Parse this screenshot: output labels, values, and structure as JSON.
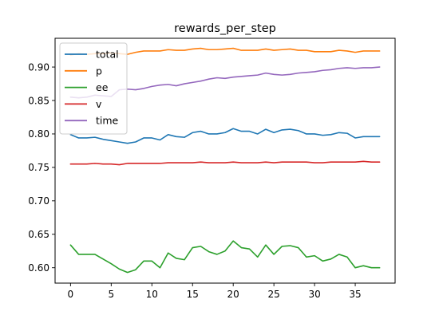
{
  "chart_data": {
    "type": "line",
    "title": "rewards_per_step",
    "xlabel": "",
    "ylabel": "",
    "xlim": [
      -1.9,
      39.9
    ],
    "ylim": [
      0.577,
      0.943
    ],
    "xticks": [
      0,
      5,
      10,
      15,
      20,
      25,
      30,
      35
    ],
    "yticks": [
      0.6,
      0.65,
      0.7,
      0.75,
      0.8,
      0.85,
      0.9
    ],
    "ytick_labels": [
      "0.60",
      "0.65",
      "0.70",
      "0.75",
      "0.80",
      "0.85",
      "0.90"
    ],
    "grid": false,
    "legend_position": "upper-left",
    "x": [
      0,
      1,
      2,
      3,
      4,
      5,
      6,
      7,
      8,
      9,
      10,
      11,
      12,
      13,
      14,
      15,
      16,
      17,
      18,
      19,
      20,
      21,
      22,
      23,
      24,
      25,
      26,
      27,
      28,
      29,
      30,
      31,
      32,
      33,
      34,
      35,
      36,
      37,
      38
    ],
    "series": [
      {
        "name": "total",
        "color": "#1f77b4",
        "values": [
          0.799,
          0.794,
          0.794,
          0.795,
          0.792,
          0.79,
          0.788,
          0.786,
          0.788,
          0.794,
          0.794,
          0.791,
          0.799,
          0.796,
          0.795,
          0.802,
          0.804,
          0.8,
          0.8,
          0.802,
          0.808,
          0.804,
          0.804,
          0.8,
          0.807,
          0.802,
          0.806,
          0.807,
          0.805,
          0.8,
          0.8,
          0.798,
          0.799,
          0.802,
          0.801,
          0.794,
          0.796,
          0.796,
          0.796
        ]
      },
      {
        "name": "p",
        "color": "#ff7f0e",
        "values": [
          0.918,
          0.92,
          0.919,
          0.92,
          0.92,
          0.921,
          0.92,
          0.919,
          0.922,
          0.924,
          0.924,
          0.924,
          0.926,
          0.925,
          0.925,
          0.927,
          0.928,
          0.926,
          0.926,
          0.927,
          0.928,
          0.925,
          0.925,
          0.925,
          0.927,
          0.925,
          0.926,
          0.927,
          0.925,
          0.925,
          0.923,
          0.923,
          0.923,
          0.925,
          0.924,
          0.922,
          0.924,
          0.924,
          0.924
        ]
      },
      {
        "name": "ee",
        "color": "#2ca02c",
        "values": [
          0.634,
          0.62,
          0.62,
          0.62,
          0.613,
          0.606,
          0.598,
          0.593,
          0.597,
          0.61,
          0.61,
          0.6,
          0.622,
          0.614,
          0.612,
          0.63,
          0.632,
          0.624,
          0.62,
          0.625,
          0.64,
          0.63,
          0.628,
          0.616,
          0.634,
          0.62,
          0.632,
          0.633,
          0.63,
          0.616,
          0.618,
          0.61,
          0.613,
          0.62,
          0.616,
          0.6,
          0.603,
          0.6,
          0.6
        ]
      },
      {
        "name": "v",
        "color": "#d62728",
        "values": [
          0.755,
          0.755,
          0.755,
          0.756,
          0.755,
          0.755,
          0.754,
          0.756,
          0.756,
          0.756,
          0.756,
          0.756,
          0.757,
          0.757,
          0.757,
          0.757,
          0.758,
          0.757,
          0.757,
          0.757,
          0.758,
          0.757,
          0.757,
          0.757,
          0.758,
          0.757,
          0.758,
          0.758,
          0.758,
          0.758,
          0.757,
          0.757,
          0.758,
          0.758,
          0.758,
          0.758,
          0.759,
          0.758,
          0.758
        ]
      },
      {
        "name": "time",
        "color": "#9467bd",
        "values": [
          0.855,
          0.854,
          0.855,
          0.858,
          0.857,
          0.856,
          0.866,
          0.867,
          0.866,
          0.868,
          0.871,
          0.873,
          0.874,
          0.872,
          0.875,
          0.877,
          0.879,
          0.882,
          0.884,
          0.883,
          0.885,
          0.886,
          0.887,
          0.888,
          0.891,
          0.889,
          0.888,
          0.889,
          0.891,
          0.892,
          0.893,
          0.895,
          0.896,
          0.898,
          0.899,
          0.898,
          0.899,
          0.899,
          0.9
        ]
      }
    ]
  }
}
